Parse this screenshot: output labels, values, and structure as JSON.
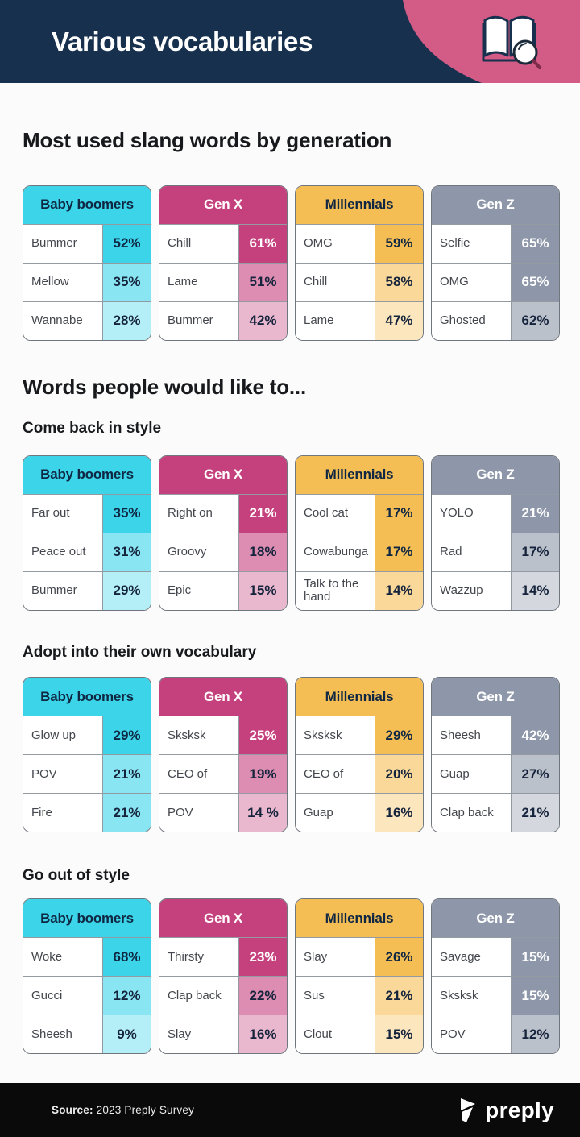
{
  "header": {
    "title": "Various vocabularies",
    "icon": "open-book-magnifier-icon"
  },
  "colors": {
    "banner_bg": "#16304E",
    "banner_accent": "#D25C86",
    "footer_bg": "#0A0A0B",
    "page_bg": "#FBFBFB"
  },
  "themes": {
    "boomers": {
      "label": "Baby boomers",
      "color": "#3BD4E9",
      "header_text": "#0F2742",
      "full_cell_text": "#0F2742"
    },
    "genx": {
      "label": "Gen X",
      "color": "#C5417D",
      "header_text": "#FFFFFF",
      "full_cell_text": "#FFFFFF"
    },
    "millennials": {
      "label": "Millennials",
      "color": "#F5BE55",
      "header_text": "#0F2742",
      "full_cell_text": "#0F2742"
    },
    "genz": {
      "label": "Gen Z",
      "color": "#8D97A9",
      "header_text": "#FFFFFF",
      "full_cell_text": "#FFFFFF"
    }
  },
  "chart_data": {
    "type": "table",
    "sections": [
      {
        "title": "Most used slang words by generation",
        "groups": [
          {
            "subtitle": null,
            "tables": [
              {
                "generation": "Baby boomers",
                "theme": "boomers",
                "rows": [
                  {
                    "word": "Bummer",
                    "value": "52%"
                  },
                  {
                    "word": "Mellow",
                    "value": "35%"
                  },
                  {
                    "word": "Wannabe",
                    "value": "28%"
                  }
                ]
              },
              {
                "generation": "Gen X",
                "theme": "genx",
                "rows": [
                  {
                    "word": "Chill",
                    "value": "61%"
                  },
                  {
                    "word": "Lame",
                    "value": "51%"
                  },
                  {
                    "word": "Bummer",
                    "value": "42%"
                  }
                ]
              },
              {
                "generation": "Millennials",
                "theme": "millennials",
                "rows": [
                  {
                    "word": "OMG",
                    "value": "59%"
                  },
                  {
                    "word": "Chill",
                    "value": "58%"
                  },
                  {
                    "word": "Lame",
                    "value": "47%"
                  }
                ]
              },
              {
                "generation": "Gen Z",
                "theme": "genz",
                "rows": [
                  {
                    "word": "Selfie",
                    "value": "65%"
                  },
                  {
                    "word": "OMG",
                    "value": "65%"
                  },
                  {
                    "word": "Ghosted",
                    "value": "62%"
                  }
                ]
              }
            ]
          }
        ]
      },
      {
        "title": "Words people would like to...",
        "groups": [
          {
            "subtitle": "Come back in style",
            "tables": [
              {
                "generation": "Baby boomers",
                "theme": "boomers",
                "rows": [
                  {
                    "word": "Far out",
                    "value": "35%"
                  },
                  {
                    "word": "Peace out",
                    "value": "31%"
                  },
                  {
                    "word": "Bummer",
                    "value": "29%"
                  }
                ]
              },
              {
                "generation": "Gen X",
                "theme": "genx",
                "rows": [
                  {
                    "word": "Right on",
                    "value": "21%"
                  },
                  {
                    "word": "Groovy",
                    "value": "18%"
                  },
                  {
                    "word": "Epic",
                    "value": "15%"
                  }
                ]
              },
              {
                "generation": "Millennials",
                "theme": "millennials",
                "rows": [
                  {
                    "word": "Cool cat",
                    "value": "17%"
                  },
                  {
                    "word": "Cowabunga",
                    "value": "17%"
                  },
                  {
                    "word": "Talk to the hand",
                    "value": "14%"
                  }
                ]
              },
              {
                "generation": "Gen Z",
                "theme": "genz",
                "rows": [
                  {
                    "word": "YOLO",
                    "value": "21%"
                  },
                  {
                    "word": "Rad",
                    "value": "17%"
                  },
                  {
                    "word": "Wazzup",
                    "value": "14%"
                  }
                ]
              }
            ]
          },
          {
            "subtitle": "Adopt into their own vocabulary",
            "tables": [
              {
                "generation": "Baby boomers",
                "theme": "boomers",
                "rows": [
                  {
                    "word": "Glow up",
                    "value": "29%"
                  },
                  {
                    "word": "POV",
                    "value": "21%"
                  },
                  {
                    "word": "Fire",
                    "value": "21%"
                  }
                ]
              },
              {
                "generation": "Gen X",
                "theme": "genx",
                "rows": [
                  {
                    "word": "Sksksk",
                    "value": "25%"
                  },
                  {
                    "word": "CEO of",
                    "value": "19%"
                  },
                  {
                    "word": "POV",
                    "value": "14 %"
                  }
                ]
              },
              {
                "generation": "Millennials",
                "theme": "millennials",
                "rows": [
                  {
                    "word": "Sksksk",
                    "value": "29%"
                  },
                  {
                    "word": "CEO of",
                    "value": "20%"
                  },
                  {
                    "word": "Guap",
                    "value": "16%"
                  }
                ]
              },
              {
                "generation": "Gen Z",
                "theme": "genz",
                "rows": [
                  {
                    "word": "Sheesh",
                    "value": "42%"
                  },
                  {
                    "word": "Guap",
                    "value": "27%"
                  },
                  {
                    "word": "Clap back",
                    "value": "21%"
                  }
                ]
              }
            ]
          },
          {
            "subtitle": "Go out of style",
            "tables": [
              {
                "generation": "Baby boomers",
                "theme": "boomers",
                "rows": [
                  {
                    "word": "Woke",
                    "value": "68%"
                  },
                  {
                    "word": "Gucci",
                    "value": "12%"
                  },
                  {
                    "word": "Sheesh",
                    "value": "9%"
                  }
                ]
              },
              {
                "generation": "Gen X",
                "theme": "genx",
                "rows": [
                  {
                    "word": "Thirsty",
                    "value": "23%"
                  },
                  {
                    "word": "Clap back",
                    "value": "22%"
                  },
                  {
                    "word": "Slay",
                    "value": "16%"
                  }
                ]
              },
              {
                "generation": "Millennials",
                "theme": "millennials",
                "rows": [
                  {
                    "word": "Slay",
                    "value": "26%"
                  },
                  {
                    "word": "Sus",
                    "value": "21%"
                  },
                  {
                    "word": "Clout",
                    "value": "15%"
                  }
                ]
              },
              {
                "generation": "Gen Z",
                "theme": "genz",
                "rows": [
                  {
                    "word": "Savage",
                    "value": "15%"
                  },
                  {
                    "word": "Sksksk",
                    "value": "15%"
                  },
                  {
                    "word": "POV",
                    "value": "12%"
                  }
                ]
              }
            ]
          }
        ]
      }
    ]
  },
  "footer": {
    "source_label": "Source:",
    "source_text": "2023 Preply Survey",
    "brand": "preply",
    "logo": "preply-logo-icon"
  }
}
